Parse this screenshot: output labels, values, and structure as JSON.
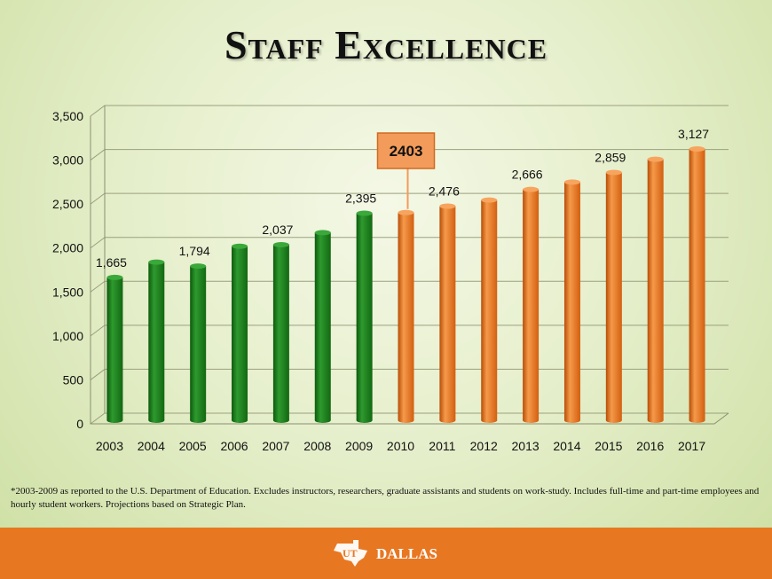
{
  "title": "Staff Excellence",
  "colors": {
    "actual": "#1a7a1a",
    "projected": "#e8731a",
    "footer": "#e87722",
    "callout": "#f29b5a"
  },
  "chart_data": {
    "type": "bar",
    "categories": [
      "2003",
      "2004",
      "2005",
      "2006",
      "2007",
      "2008",
      "2009",
      "2010",
      "2011",
      "2012",
      "2013",
      "2014",
      "2015",
      "2016",
      "2017"
    ],
    "values": [
      1665,
      1840,
      1794,
      2020,
      2037,
      2175,
      2395,
      2403,
      2476,
      2545,
      2666,
      2750,
      2859,
      3010,
      3127
    ],
    "data_labels": [
      "1,665",
      "",
      "1,794",
      "",
      "2,037",
      "",
      "2,395",
      "",
      "2,476",
      "",
      "2,666",
      "",
      "2,859",
      "",
      "3,127"
    ],
    "series_type": [
      "actual",
      "actual",
      "actual",
      "actual",
      "actual",
      "actual",
      "actual",
      "projected",
      "projected",
      "projected",
      "projected",
      "projected",
      "projected",
      "projected",
      "projected"
    ],
    "ylim": [
      0,
      3500
    ],
    "yticks": [
      0,
      500,
      1000,
      1500,
      2000,
      2500,
      3000,
      3500
    ],
    "ytick_labels": [
      "0",
      "500",
      "1,000",
      "1,500",
      "2,000",
      "2,500",
      "3,000",
      "3,500"
    ],
    "grid": true,
    "callout": {
      "text": "2403",
      "category": "2010"
    }
  },
  "footnote": "*2003-2009 as reported to the U.S. Department of Education. Excludes instructors, researchers, graduate assistants and students on work-study. Includes full-time and part-time employees and hourly student workers.   Projections based on Strategic Plan.",
  "footer": {
    "logo_text": "DALLAS",
    "logo_mark": "UT"
  }
}
